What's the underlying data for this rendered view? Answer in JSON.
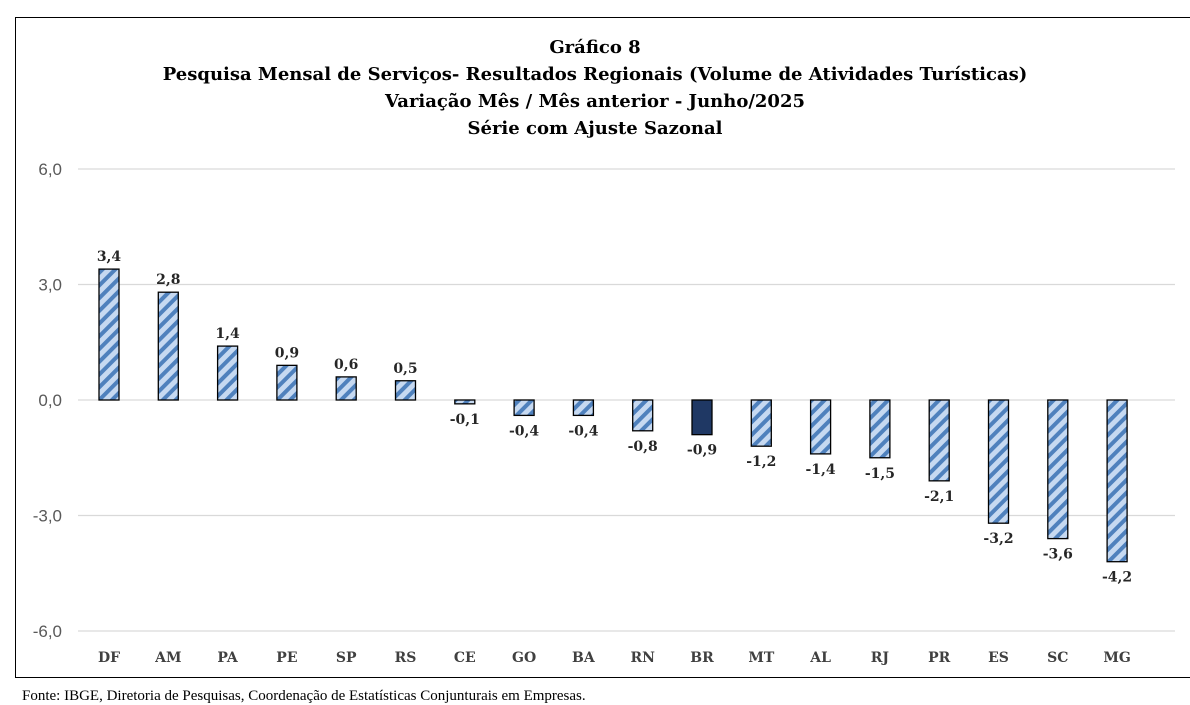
{
  "chart_data": {
    "type": "bar",
    "title_lines": [
      "Gráfico 8",
      "Pesquisa Mensal de Serviços- Resultados Regionais (Volume de Atividades Turísticas)",
      "Variação Mês / Mês anterior - Junho/2025",
      "Série com Ajuste Sazonal"
    ],
    "categories": [
      "DF",
      "AM",
      "PA",
      "PE",
      "SP",
      "RS",
      "CE",
      "GO",
      "BA",
      "RN",
      "BR",
      "MT",
      "AL",
      "RJ",
      "PR",
      "ES",
      "SC",
      "MG"
    ],
    "values": [
      3.4,
      2.8,
      1.4,
      0.9,
      0.6,
      0.5,
      -0.1,
      -0.4,
      -0.4,
      -0.8,
      -0.9,
      -1.2,
      -1.4,
      -1.5,
      -2.1,
      -3.2,
      -3.6,
      -4.2
    ],
    "data_labels": [
      "3,4",
      "2,8",
      "1,4",
      "0,9",
      "0,6",
      "0,5",
      "-0,1",
      "-0,4",
      "-0,4",
      "-0,8",
      "-0,9",
      "-1,2",
      "-1,4",
      "-1,5",
      "-2,1",
      "-3,2",
      "-3,6",
      "-4,2"
    ],
    "highlight_category": "BR",
    "ylim": [
      -6.0,
      6.0
    ],
    "yticks": [
      6.0,
      3.0,
      0.0,
      -3.0,
      -6.0
    ],
    "ytick_labels": [
      "6,0",
      "3,0",
      "0,0",
      "-3,0",
      "-6,0"
    ],
    "xlabel": "",
    "ylabel": "",
    "grid": true,
    "legend": "none",
    "colors": {
      "bar_fill_light": "#c6d9f1",
      "bar_stripe": "#4f81bd",
      "bar_highlight": "#1f3864",
      "bar_edge": "#000000",
      "grid": "#d9d9d9",
      "tick_text": "#595959"
    }
  },
  "footer": "Fonte: IBGE, Diretoria de Pesquisas, Coordenação de Estatísticas Conjunturais em Empresas."
}
